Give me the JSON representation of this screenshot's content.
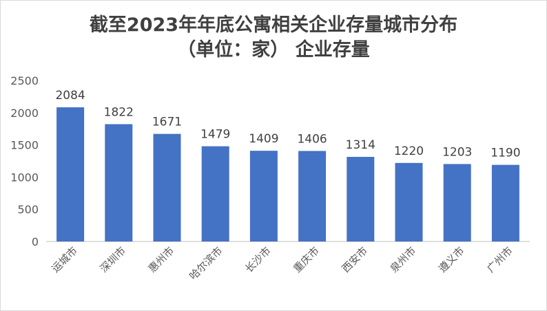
{
  "chart_data": {
    "type": "bar",
    "title_lines": [
      "截至2023年年底公寓相关企业存量城市分布",
      "（单位：家） 企业存量"
    ],
    "categories": [
      "运城市",
      "深圳市",
      "惠州市",
      "哈尔滨市",
      "长沙市",
      "重庆市",
      "西安市",
      "泉州市",
      "遵义市",
      "广州市"
    ],
    "values": [
      2084,
      1822,
      1671,
      1479,
      1409,
      1406,
      1314,
      1220,
      1203,
      1190
    ],
    "ylim": [
      0,
      2500
    ],
    "yticks": [
      0,
      500,
      1000,
      1500,
      2000,
      2500
    ],
    "grid": false,
    "legend": "none",
    "bar_color": "#4472C4",
    "axis_color": "#bfbfbf"
  }
}
